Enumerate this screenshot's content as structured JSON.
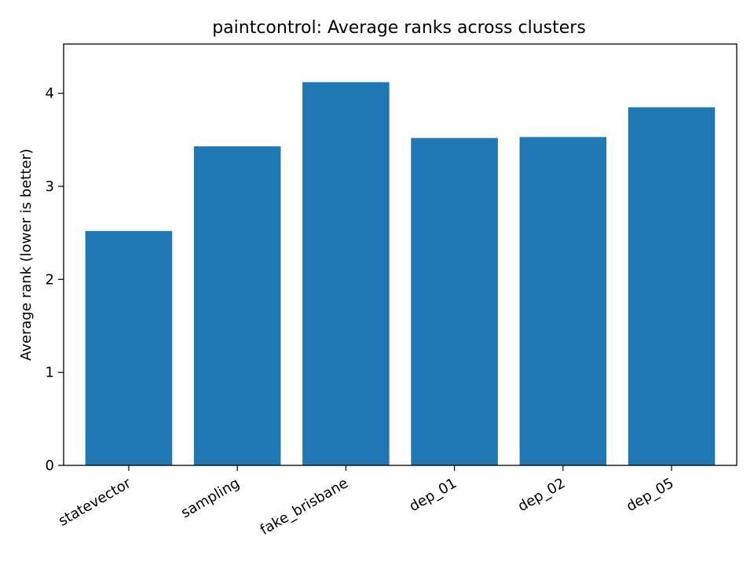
{
  "chart_data": {
    "type": "bar",
    "title": "paintcontrol: Average ranks across clusters",
    "xlabel": "",
    "ylabel": "Average rank (lower is better)",
    "categories": [
      "statevector",
      "sampling",
      "fake_brisbane",
      "dep_01",
      "dep_02",
      "dep_05"
    ],
    "values": [
      2.52,
      3.43,
      4.12,
      3.52,
      3.53,
      3.85
    ],
    "ylim": [
      0,
      4.53
    ],
    "yticks": [
      "0",
      "1",
      "2",
      "3",
      "4"
    ],
    "bar_color": "#1f77b4",
    "grid": false,
    "legend": "none"
  }
}
